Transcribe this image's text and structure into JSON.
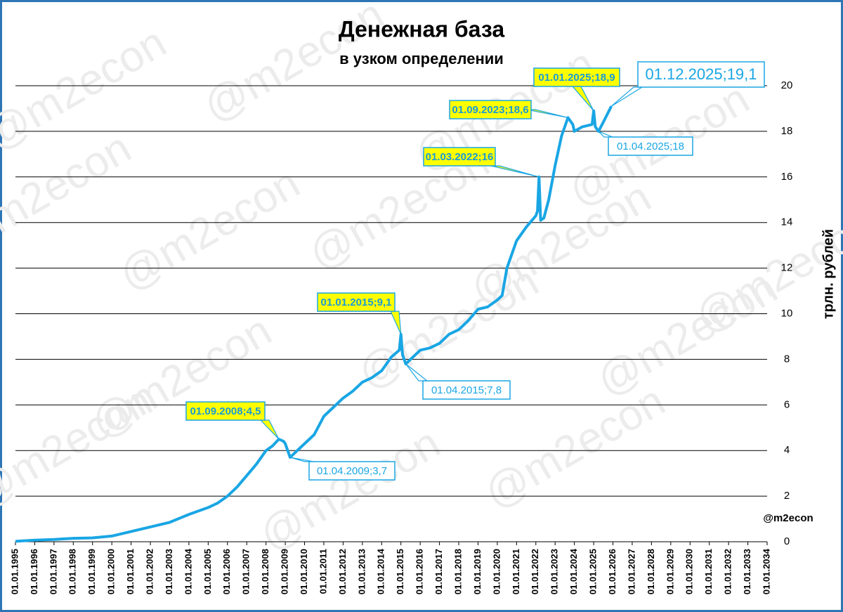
{
  "chart_data": {
    "type": "line",
    "title": "Денежная база",
    "subtitle": "в узком определении",
    "y_label": "трлн. рублей",
    "source_label": "@m2econ",
    "watermark": "@m2econ",
    "color": "#1aa6e4",
    "grid": true,
    "ylim": [
      0,
      20
    ],
    "yticks": [
      0,
      2,
      4,
      6,
      8,
      10,
      12,
      14,
      16,
      18,
      20
    ],
    "xlim": [
      "01.01.1995",
      "01.01.2034"
    ],
    "xticks": [
      "01.01.1995",
      "01.01.1996",
      "01.01.1997",
      "01.01.1998",
      "01.01.1999",
      "01.01.2000",
      "01.01.2001",
      "01.01.2002",
      "01.01.2003",
      "01.01.2004",
      "01.01.2005",
      "01.01.2006",
      "01.01.2007",
      "01.01.2008",
      "01.01.2009",
      "01.01.2010",
      "01.01.2011",
      "01.01.2012",
      "01.01.2013",
      "01.01.2014",
      "01.01.2015",
      "01.01.2016",
      "01.01.2017",
      "01.01.2018",
      "01.01.2019",
      "01.01.2020",
      "01.01.2021",
      "01.01.2022",
      "01.01.2023",
      "01.01.2024",
      "01.01.2025",
      "01.01.2026",
      "01.01.2027",
      "01.01.2028",
      "01.01.2029",
      "01.01.2030",
      "01.01.2031",
      "01.01.2032",
      "01.01.2033",
      "01.01.2034"
    ],
    "x": [
      "01.01.1995",
      "01.01.1996",
      "01.01.1997",
      "01.01.1998",
      "01.01.1999",
      "01.01.2000",
      "01.01.2001",
      "01.01.2002",
      "01.01.2003",
      "01.01.2004",
      "01.01.2005",
      "01.07.2005",
      "01.01.2006",
      "01.07.2006",
      "01.01.2007",
      "01.07.2007",
      "01.01.2008",
      "01.05.2008",
      "01.09.2008",
      "01.12.2008",
      "01.01.2009",
      "01.04.2009",
      "01.07.2009",
      "01.01.2010",
      "01.07.2010",
      "01.01.2011",
      "01.07.2011",
      "01.01.2012",
      "01.07.2012",
      "01.01.2013",
      "01.07.2013",
      "01.01.2014",
      "01.07.2014",
      "01.12.2014",
      "01.01.2015",
      "01.02.2015",
      "01.04.2015",
      "01.07.2015",
      "01.01.2016",
      "01.07.2016",
      "01.01.2017",
      "01.07.2017",
      "01.01.2018",
      "01.07.2018",
      "01.01.2019",
      "01.07.2019",
      "01.01.2020",
      "01.04.2020",
      "01.07.2020",
      "01.01.2021",
      "01.07.2021",
      "01.01.2022",
      "01.02.2022",
      "01.03.2022",
      "01.04.2022",
      "01.06.2022",
      "01.09.2022",
      "01.01.2023",
      "01.05.2023",
      "01.09.2023",
      "01.12.2023",
      "01.01.2024",
      "01.06.2024",
      "01.12.2024",
      "01.01.2025",
      "01.02.2025",
      "01.04.2025",
      "01.07.2025",
      "01.12.2025"
    ],
    "values": [
      0.02,
      0.07,
      0.1,
      0.15,
      0.17,
      0.25,
      0.45,
      0.65,
      0.85,
      1.2,
      1.5,
      1.7,
      2.0,
      2.4,
      2.9,
      3.4,
      4.0,
      4.2,
      4.5,
      4.4,
      4.3,
      3.7,
      3.9,
      4.3,
      4.7,
      5.5,
      5.9,
      6.3,
      6.6,
      7.0,
      7.2,
      7.5,
      8.1,
      8.4,
      9.1,
      8.2,
      7.8,
      8.0,
      8.4,
      8.5,
      8.7,
      9.1,
      9.3,
      9.7,
      10.2,
      10.3,
      10.6,
      10.8,
      12.0,
      13.2,
      13.8,
      14.3,
      14.5,
      16.0,
      14.1,
      14.2,
      15.0,
      16.5,
      17.8,
      18.6,
      18.3,
      18.0,
      18.2,
      18.3,
      18.9,
      18.2,
      18.0,
      18.4,
      19.1
    ],
    "annotations": [
      {
        "text": "01.09.2008;4,5",
        "x": "01.09.2008",
        "y": 4.5,
        "style": "highlight"
      },
      {
        "text": "01.04.2009;3,7",
        "x": "01.04.2009",
        "y": 3.7,
        "style": "plain"
      },
      {
        "text": "01.01.2015;9,1",
        "x": "01.01.2015",
        "y": 9.1,
        "style": "highlight"
      },
      {
        "text": "01.04.2015;7,8",
        "x": "01.04.2015",
        "y": 7.8,
        "style": "plain"
      },
      {
        "text": "01.03.2022;16",
        "x": "01.03.2022",
        "y": 16,
        "style": "highlight"
      },
      {
        "text": "01.09.2023;18,6",
        "x": "01.09.2023",
        "y": 18.6,
        "style": "highlight"
      },
      {
        "text": "01.01.2025;18,9",
        "x": "01.01.2025",
        "y": 18.9,
        "style": "highlight"
      },
      {
        "text": "01.04.2025;18",
        "x": "01.04.2025",
        "y": 18,
        "style": "plain"
      },
      {
        "text": "01.12.2025;19,1",
        "x": "01.12.2025",
        "y": 19.1,
        "style": "large"
      }
    ]
  }
}
